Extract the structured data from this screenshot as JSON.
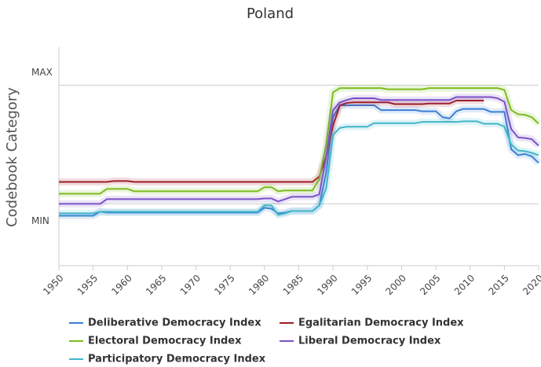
{
  "chart_data": {
    "type": "line",
    "title": "Poland",
    "y_label": "Codebook Category",
    "x": [
      1950,
      1951,
      1952,
      1953,
      1954,
      1955,
      1956,
      1957,
      1958,
      1959,
      1960,
      1961,
      1962,
      1963,
      1964,
      1965,
      1966,
      1967,
      1968,
      1969,
      1970,
      1971,
      1972,
      1973,
      1974,
      1975,
      1976,
      1977,
      1978,
      1979,
      1980,
      1981,
      1982,
      1983,
      1984,
      1985,
      1986,
      1987,
      1988,
      1989,
      1990,
      1991,
      1992,
      1993,
      1994,
      1995,
      1996,
      1997,
      1998,
      1999,
      2000,
      2001,
      2002,
      2003,
      2004,
      2005,
      2006,
      2007,
      2008,
      2009,
      2010,
      2011,
      2012,
      2013,
      2014,
      2015,
      2016,
      2017,
      2018,
      2019,
      2020
    ],
    "xlim": [
      1950,
      2020
    ],
    "xticks": [
      1950,
      1955,
      1960,
      1965,
      1970,
      1975,
      1980,
      1985,
      1990,
      1995,
      2000,
      2005,
      2010,
      2015,
      2020
    ],
    "ylim": [
      -0.52,
      1.32
    ],
    "yticks": [
      {
        "value": 0,
        "label": "MIN"
      },
      {
        "value": 1,
        "label": "MAX"
      }
    ],
    "grid": true,
    "legend": "bottom",
    "series": [
      {
        "name": "Deliberative Democracy Index",
        "color": "#3a7fd5",
        "values": [
          -0.1,
          -0.1,
          -0.1,
          -0.1,
          -0.1,
          -0.1,
          -0.066,
          -0.073,
          -0.073,
          -0.073,
          -0.073,
          -0.073,
          -0.073,
          -0.073,
          -0.073,
          -0.073,
          -0.073,
          -0.073,
          -0.073,
          -0.073,
          -0.073,
          -0.073,
          -0.073,
          -0.073,
          -0.073,
          -0.073,
          -0.073,
          -0.073,
          -0.073,
          -0.073,
          -0.033,
          -0.04,
          -0.08,
          -0.073,
          -0.06,
          -0.06,
          -0.06,
          -0.06,
          -0.013,
          0.265,
          0.73,
          0.83,
          0.83,
          0.83,
          0.83,
          0.83,
          0.83,
          0.79,
          0.79,
          0.79,
          0.79,
          0.79,
          0.79,
          0.78,
          0.78,
          0.78,
          0.73,
          0.72,
          0.78,
          0.8,
          0.8,
          0.8,
          0.8,
          0.775,
          0.775,
          0.775,
          0.46,
          0.41,
          0.42,
          0.4,
          0.345
        ]
      },
      {
        "name": "Egalitarian Democracy Index",
        "color": "#a01d26",
        "values": [
          0.185,
          0.185,
          0.185,
          0.185,
          0.185,
          0.185,
          0.185,
          0.185,
          0.192,
          0.192,
          0.192,
          0.185,
          0.185,
          0.185,
          0.185,
          0.185,
          0.185,
          0.185,
          0.185,
          0.185,
          0.185,
          0.185,
          0.185,
          0.185,
          0.185,
          0.185,
          0.185,
          0.185,
          0.185,
          0.185,
          0.185,
          0.185,
          0.185,
          0.185,
          0.185,
          0.185,
          0.185,
          0.185,
          0.23,
          0.4,
          0.66,
          0.83,
          0.85,
          0.855,
          0.855,
          0.855,
          0.855,
          0.855,
          0.855,
          0.84,
          0.84,
          0.84,
          0.84,
          0.84,
          0.845,
          0.845,
          0.845,
          0.845,
          0.87,
          0.87,
          0.87,
          0.87,
          0.87,
          null,
          null,
          null,
          null,
          null,
          null,
          null,
          null
        ]
      },
      {
        "name": "Electoral Democracy Index",
        "color": "#7cbc1e",
        "values": [
          0.086,
          0.086,
          0.086,
          0.086,
          0.086,
          0.086,
          0.086,
          0.126,
          0.126,
          0.126,
          0.126,
          0.106,
          0.106,
          0.106,
          0.106,
          0.106,
          0.106,
          0.106,
          0.106,
          0.106,
          0.106,
          0.106,
          0.106,
          0.106,
          0.106,
          0.106,
          0.106,
          0.106,
          0.106,
          0.106,
          0.14,
          0.14,
          0.106,
          0.113,
          0.113,
          0.113,
          0.113,
          0.113,
          0.21,
          0.5,
          0.94,
          0.975,
          0.975,
          0.975,
          0.975,
          0.975,
          0.975,
          0.975,
          0.965,
          0.965,
          0.965,
          0.965,
          0.965,
          0.965,
          0.975,
          0.975,
          0.975,
          0.975,
          0.975,
          0.975,
          0.975,
          0.975,
          0.975,
          0.975,
          0.975,
          0.96,
          0.79,
          0.755,
          0.75,
          0.73,
          0.675
        ]
      },
      {
        "name": "Liberal Democracy Index",
        "color": "#7b52c9",
        "values": [
          0,
          0,
          0,
          0,
          0,
          0,
          0,
          0.04,
          0.04,
          0.04,
          0.04,
          0.04,
          0.04,
          0.04,
          0.04,
          0.04,
          0.04,
          0.04,
          0.04,
          0.04,
          0.04,
          0.04,
          0.04,
          0.04,
          0.04,
          0.04,
          0.04,
          0.04,
          0.04,
          0.04,
          0.046,
          0.046,
          0.02,
          0.04,
          0.06,
          0.06,
          0.06,
          0.06,
          0.08,
          0.4,
          0.79,
          0.855,
          0.875,
          0.89,
          0.89,
          0.89,
          0.89,
          0.875,
          0.875,
          0.875,
          0.875,
          0.875,
          0.875,
          0.875,
          0.875,
          0.875,
          0.875,
          0.875,
          0.9,
          0.9,
          0.9,
          0.9,
          0.9,
          0.9,
          0.89,
          0.86,
          0.63,
          0.56,
          0.555,
          0.545,
          0.49
        ]
      },
      {
        "name": "Participatory Democracy Index",
        "color": "#3fb6c8",
        "values": [
          -0.08,
          -0.08,
          -0.08,
          -0.08,
          -0.08,
          -0.08,
          -0.066,
          -0.066,
          -0.066,
          -0.066,
          -0.066,
          -0.066,
          -0.066,
          -0.066,
          -0.066,
          -0.066,
          -0.066,
          -0.066,
          -0.066,
          -0.066,
          -0.066,
          -0.066,
          -0.066,
          -0.066,
          -0.066,
          -0.066,
          -0.066,
          -0.066,
          -0.066,
          -0.066,
          -0.013,
          -0.013,
          -0.093,
          -0.08,
          -0.06,
          -0.06,
          -0.06,
          -0.06,
          -0.013,
          0.13,
          0.58,
          0.64,
          0.65,
          0.65,
          0.65,
          0.65,
          0.68,
          0.68,
          0.68,
          0.68,
          0.68,
          0.68,
          0.68,
          0.69,
          0.69,
          0.69,
          0.69,
          0.69,
          0.69,
          0.695,
          0.695,
          0.695,
          0.675,
          0.675,
          0.675,
          0.65,
          0.5,
          0.45,
          0.445,
          0.43,
          0.41
        ]
      }
    ]
  }
}
